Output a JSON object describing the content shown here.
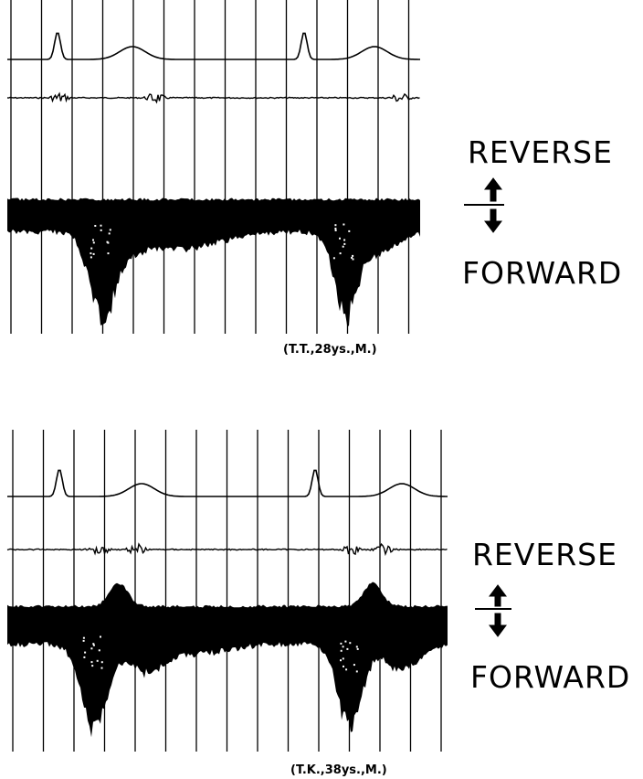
{
  "panels": [
    {
      "reverse_label": "REVERSE",
      "forward_label": "FORWARD",
      "caption": "(T.T.,28ys.,M.)"
    },
    {
      "reverse_label": "REVERSE",
      "forward_label": "FORWARD",
      "caption": "(T.K.,38ys.,M.)"
    }
  ]
}
